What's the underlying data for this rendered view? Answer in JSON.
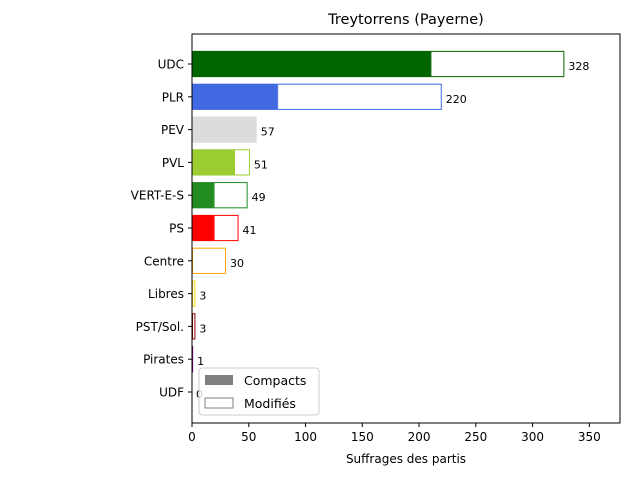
{
  "chart_data": {
    "type": "bar",
    "orientation": "horizontal",
    "stacked": true,
    "title": "Treytorrens (Payerne)",
    "xlabel": "Suffrages des partis",
    "ylabel": "",
    "xlim": [
      0,
      377
    ],
    "xticks": [
      0,
      50,
      100,
      150,
      200,
      250,
      300,
      350
    ],
    "grid": false,
    "legend_position": "lower-left",
    "categories": [
      "UDC",
      "PLR",
      "PEV",
      "PVL",
      "VERT-E-S",
      "PS",
      "Centre",
      "Libres",
      "PST/Sol.",
      "Pirates",
      "UDF"
    ],
    "colors": [
      "#006400",
      "#4169e1",
      "#dcdcdc",
      "#9acd32",
      "#228b22",
      "#ff0000",
      "#ffa500",
      "#ffd700",
      "#8b0000",
      "#800080",
      "#a0522d"
    ],
    "series": [
      {
        "name": "Compacts",
        "values": [
          210,
          75,
          57,
          37,
          19,
          19,
          0,
          0,
          0,
          0,
          0
        ]
      },
      {
        "name": "Modifiés",
        "values": [
          118,
          145,
          0,
          14,
          30,
          22,
          30,
          3,
          3,
          1,
          0
        ]
      }
    ],
    "totals": [
      328,
      220,
      57,
      51,
      49,
      41,
      30,
      3,
      3,
      1,
      0
    ],
    "legend": {
      "compact_color": "#808080",
      "modified_border": "#808080"
    }
  }
}
